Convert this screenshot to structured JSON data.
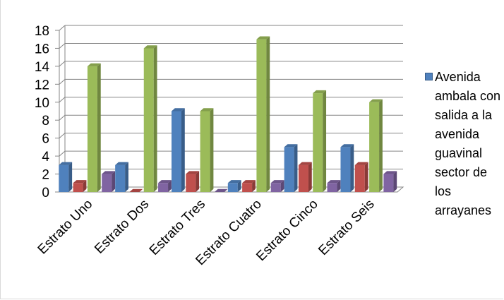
{
  "chart_data": {
    "type": "bar",
    "categories": [
      "Estrato Uno",
      "Estrato Dos",
      "Estrato Tres",
      "Estrato Cuatro",
      "Estrato Cinco",
      "Estrato Seis"
    ],
    "series": [
      {
        "name": "Avenida ambala con salida a la avenida guavinal sector de los arrayanes",
        "color": "#4f81bd",
        "values": [
          3,
          3,
          9,
          1,
          5,
          5
        ]
      },
      {
        "color": "#c0504d",
        "values": [
          1,
          0,
          2,
          1,
          3,
          3
        ]
      },
      {
        "color": "#9bbb59",
        "values": [
          14,
          16,
          9,
          17,
          11,
          10
        ]
      },
      {
        "color": "#8064a2",
        "values": [
          2,
          1,
          0,
          1,
          1,
          2
        ]
      }
    ],
    "title": "",
    "xlabel": "",
    "ylabel": "",
    "ylim": [
      0,
      18
    ],
    "yticks": [
      "0",
      "2",
      "4",
      "6",
      "8",
      "10",
      "12",
      "14",
      "16",
      "18"
    ],
    "grid": true,
    "legend_position": "right",
    "style": "3d-clustered-column"
  }
}
